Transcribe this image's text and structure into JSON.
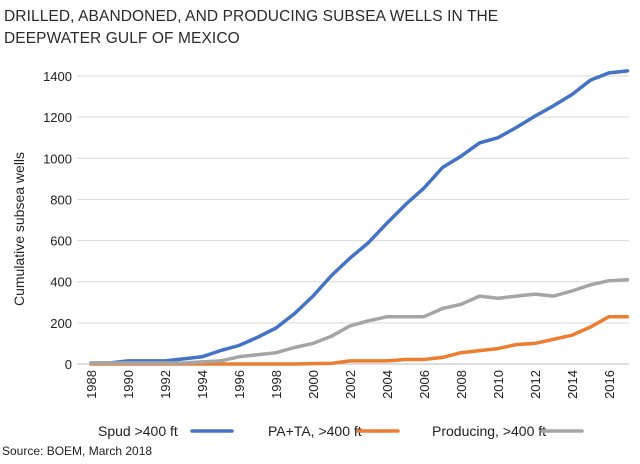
{
  "chart_data": {
    "type": "line",
    "title": "DRILLED, ABANDONED, AND PRODUCING SUBSEA WELLS IN THE DEEPWATER GULF OF MEXICO",
    "title_lines": [
      "DRILLED, ABANDONED, AND PRODUCING SUBSEA WELLS IN THE",
      "DEEPWATER GULF OF MEXICO"
    ],
    "xlabel": "",
    "ylabel": "Cumulative subsea wells",
    "xlim": [
      1988,
      2018
    ],
    "ylim": [
      0,
      1400
    ],
    "x_ticks": [
      "1988",
      "1990",
      "1992",
      "1994",
      "1996",
      "1998",
      "2000",
      "2002",
      "2004",
      "2006",
      "2008",
      "2010",
      "2012",
      "2014",
      "2016"
    ],
    "y_ticks": [
      "0",
      "200",
      "400",
      "600",
      "800",
      "1000",
      "1200",
      "1400"
    ],
    "grid": "horizontal",
    "legend": "bottom",
    "x": [
      1988,
      1989,
      1990,
      1991,
      1992,
      1993,
      1994,
      1995,
      1996,
      1997,
      1998,
      1999,
      2000,
      2001,
      2002,
      2003,
      2004,
      2005,
      2006,
      2007,
      2008,
      2009,
      2010,
      2011,
      2012,
      2013,
      2014,
      2015,
      2016,
      2017
    ],
    "series": [
      {
        "name": "Spud >400 ft",
        "color": "#4472c4",
        "values": [
          5,
          5,
          15,
          15,
          15,
          25,
          35,
          65,
          90,
          130,
          175,
          245,
          330,
          430,
          515,
          590,
          685,
          775,
          855,
          955,
          1010,
          1075,
          1100,
          1150,
          1205,
          1255,
          1310,
          1380,
          1415,
          1425
        ]
      },
      {
        "name": "PA+TA, >400 ft",
        "color": "#ed7d31",
        "values": [
          0,
          0,
          0,
          0,
          0,
          0,
          0,
          0,
          0,
          0,
          0,
          0,
          2,
          3,
          15,
          15,
          15,
          22,
          22,
          32,
          55,
          65,
          75,
          95,
          100,
          120,
          140,
          180,
          230,
          230
        ]
      },
      {
        "name": "Producing, >400 ft",
        "color": "#a5a5a5",
        "values": [
          5,
          5,
          5,
          5,
          5,
          5,
          10,
          15,
          35,
          45,
          55,
          80,
          100,
          135,
          185,
          210,
          230,
          230,
          230,
          270,
          290,
          330,
          320,
          330,
          340,
          330,
          355,
          385,
          405,
          410
        ]
      }
    ],
    "source": "Source: BOEM, March 2018"
  }
}
